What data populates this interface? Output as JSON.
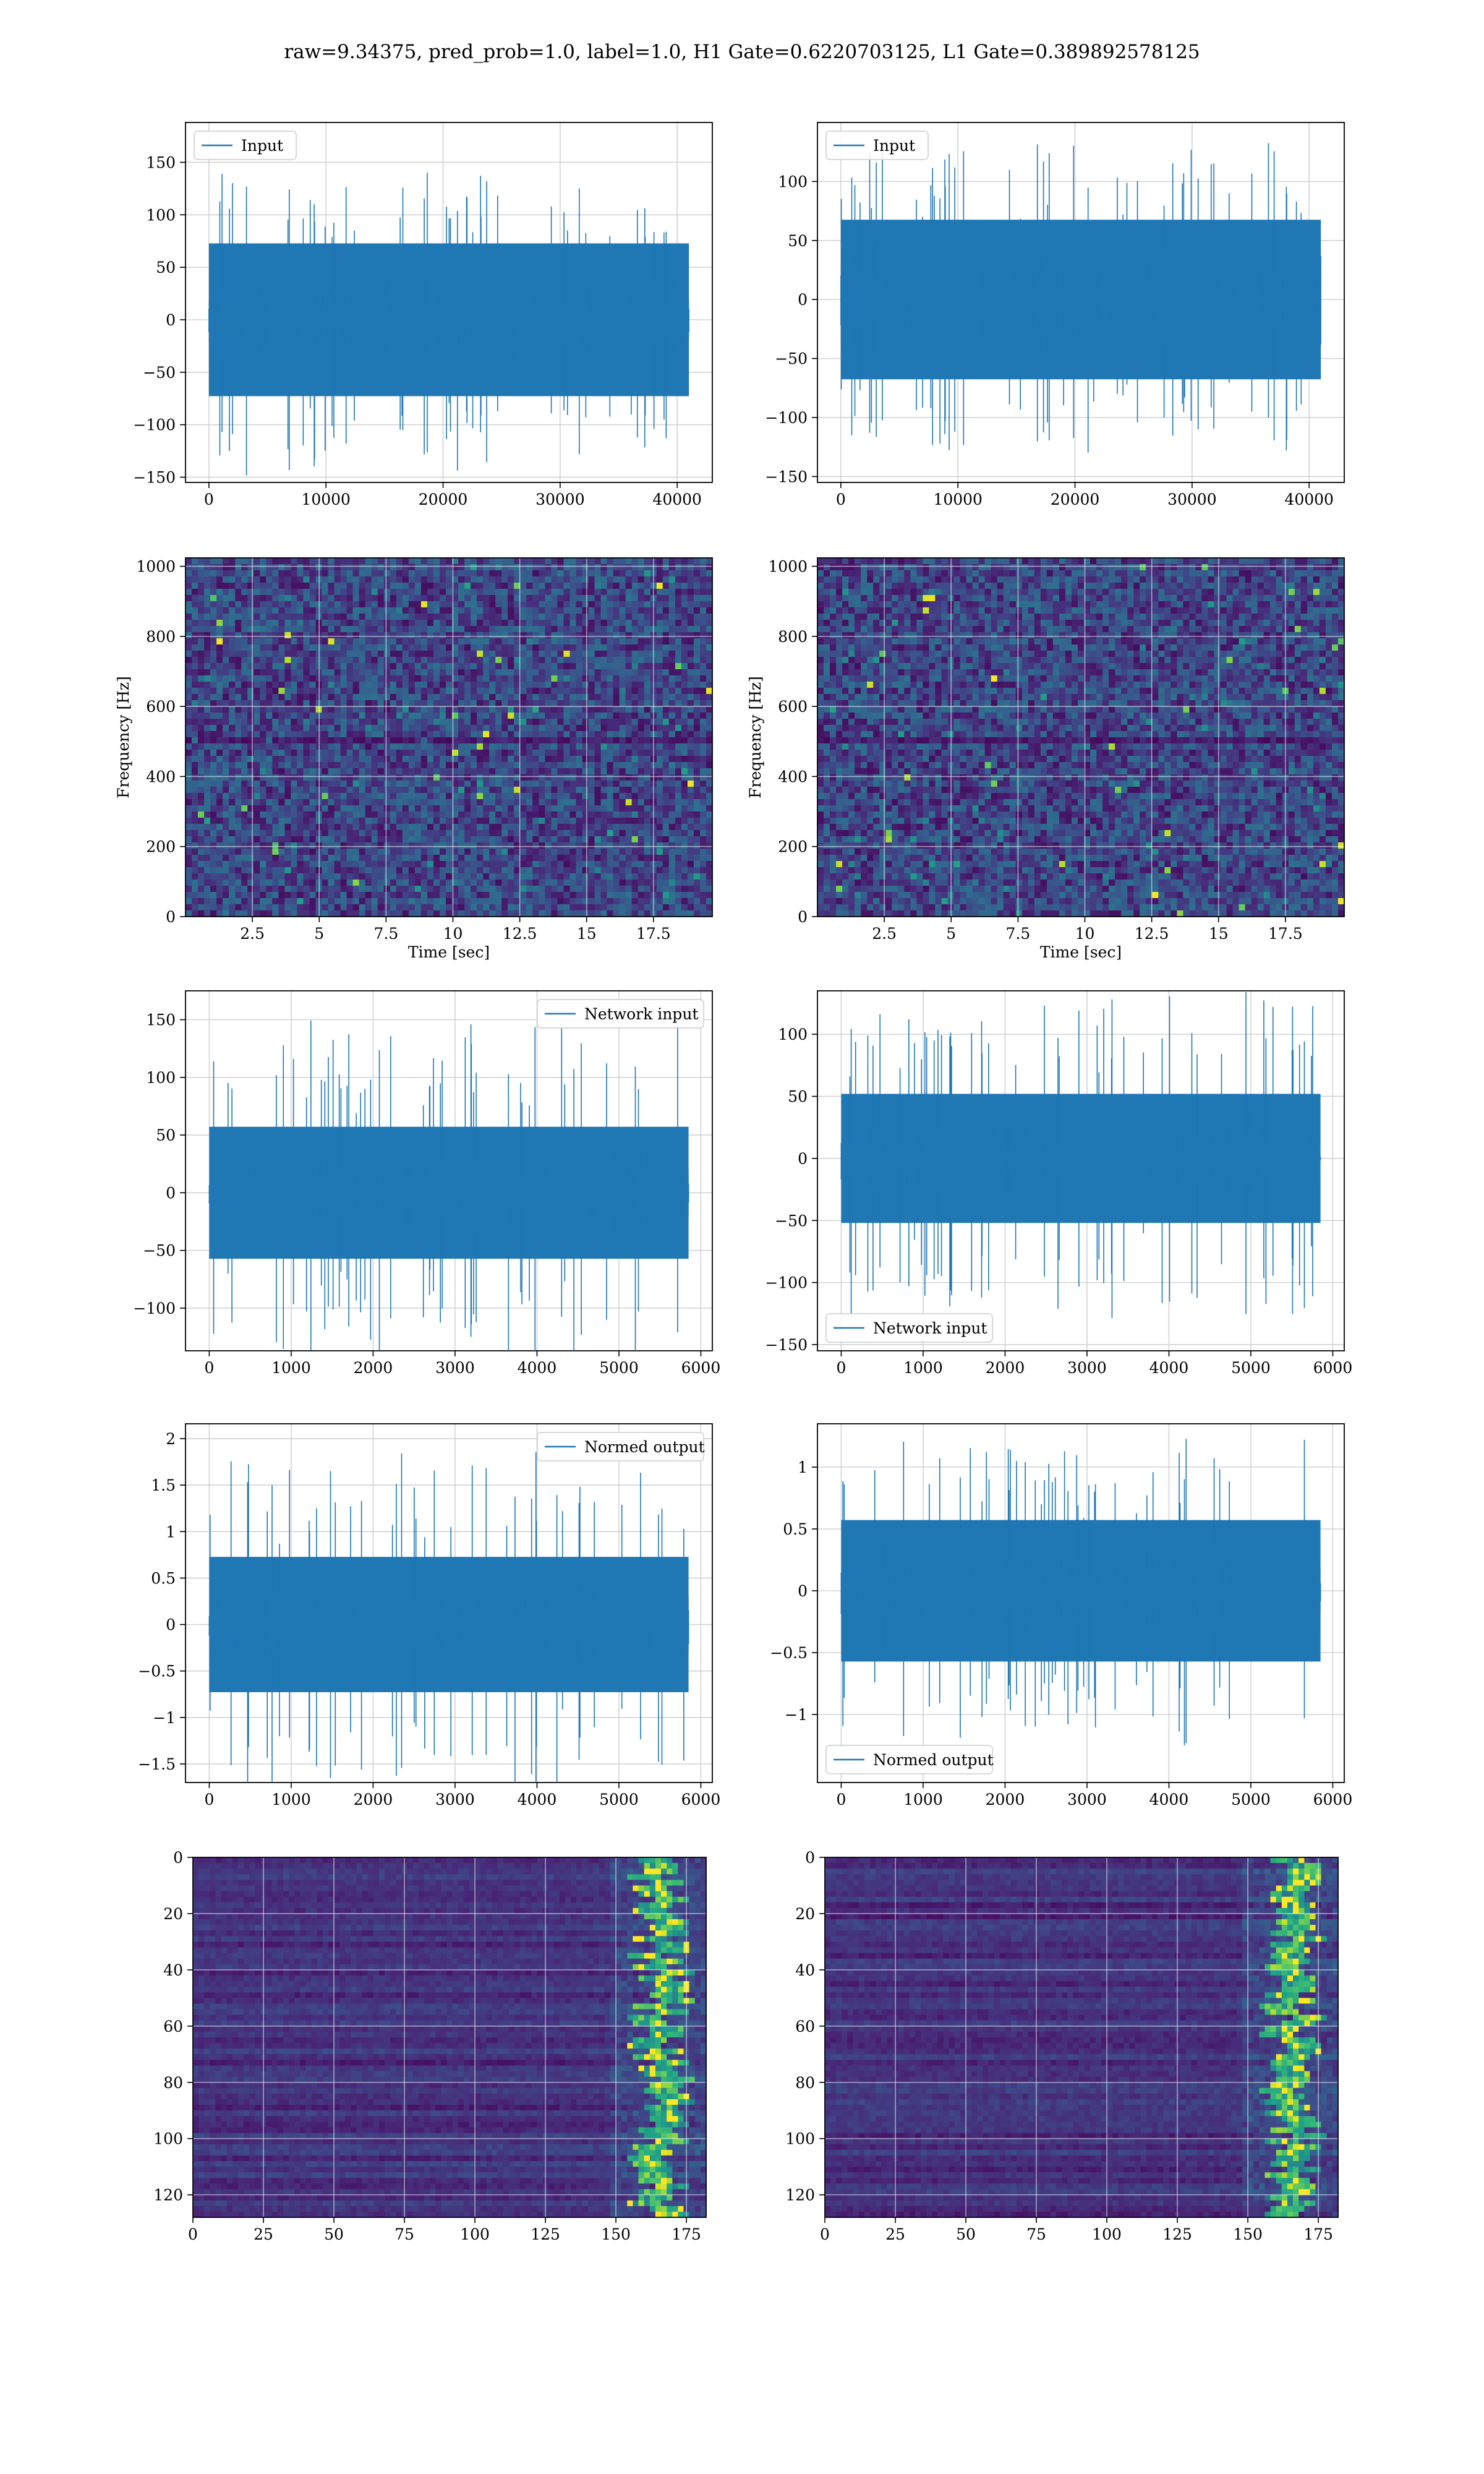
{
  "figure": {
    "title": "raw=9.34375, pred_prob=1.0, label=1.0, H1 Gate=0.6220703125, L1 Gate=0.389892578125"
  },
  "colors": {
    "series": "#1f77b4",
    "grid": "#d3d3d3",
    "viridis_low": "#440154",
    "viridis_mid": "#21918c",
    "viridis_high": "#fde725"
  },
  "chart_data": [
    {
      "id": "h1-input",
      "type": "line",
      "series": [
        {
          "name": "Input",
          "style": "dense noise, amplitude mostly ±90, spikes to ±150"
        }
      ],
      "x": [
        0,
        41000
      ],
      "xticks": [
        0,
        10000,
        20000,
        30000,
        40000
      ],
      "yticks": [
        -150,
        -100,
        -50,
        0,
        50,
        100,
        150
      ],
      "xlim": [
        -2000,
        43000
      ],
      "ylim": [
        -155,
        188
      ],
      "legend": "upper left",
      "grid": true
    },
    {
      "id": "l1-input",
      "type": "line",
      "series": [
        {
          "name": "Input",
          "style": "dense noise, amplitude mostly ±80, spikes to ±140"
        }
      ],
      "x": [
        0,
        41000
      ],
      "xticks": [
        0,
        10000,
        20000,
        30000,
        40000
      ],
      "yticks": [
        -150,
        -100,
        -50,
        0,
        50,
        100
      ],
      "xlim": [
        -2000,
        43000
      ],
      "ylim": [
        -155,
        150
      ],
      "legend": "upper left",
      "grid": true
    },
    {
      "id": "h1-spectrogram",
      "type": "heatmap",
      "xlabel": "Time [sec]",
      "ylabel": "Frequency [Hz]",
      "xticks": [
        2.5,
        5.0,
        7.5,
        10.0,
        12.5,
        15.0,
        17.5
      ],
      "yticks": [
        0,
        200,
        400,
        600,
        800,
        1000
      ],
      "xlim": [
        0,
        19.7
      ],
      "ylim": [
        0,
        1024
      ],
      "grid": true,
      "colormap": "viridis"
    },
    {
      "id": "l1-spectrogram",
      "type": "heatmap",
      "xlabel": "Time [sec]",
      "ylabel": "Frequency [Hz]",
      "xticks": [
        2.5,
        5.0,
        7.5,
        10.0,
        12.5,
        15.0,
        17.5
      ],
      "yticks": [
        0,
        200,
        400,
        600,
        800,
        1000
      ],
      "xlim": [
        0,
        19.7
      ],
      "ylim": [
        0,
        1024
      ],
      "grid": true,
      "colormap": "viridis"
    },
    {
      "id": "h1-network-input",
      "type": "line",
      "series": [
        {
          "name": "Network input",
          "style": "dense noise, amplitude mostly ±70, spikes to ±150"
        }
      ],
      "x": [
        0,
        5850
      ],
      "xticks": [
        0,
        1000,
        2000,
        3000,
        4000,
        5000,
        6000
      ],
      "yticks": [
        -100,
        -50,
        0,
        50,
        100,
        150
      ],
      "xlim": [
        -290,
        6140
      ],
      "ylim": [
        -137,
        175
      ],
      "legend": "upper right",
      "grid": true
    },
    {
      "id": "l1-network-input",
      "type": "line",
      "series": [
        {
          "name": "Network input",
          "style": "dense noise, amplitude mostly ±60, spikes to ±140"
        }
      ],
      "x": [
        0,
        5850
      ],
      "xticks": [
        0,
        1000,
        2000,
        3000,
        4000,
        5000,
        6000
      ],
      "yticks": [
        -150,
        -100,
        -50,
        0,
        50,
        100
      ],
      "xlim": [
        -290,
        6140
      ],
      "ylim": [
        -155,
        135
      ],
      "legend": "lower left",
      "grid": true
    },
    {
      "id": "h1-normed-output",
      "type": "line",
      "series": [
        {
          "name": "Normed output",
          "style": "dense noise, amplitude mostly ±0.9, spikes to ±2.0"
        }
      ],
      "x": [
        0,
        5850
      ],
      "xticks": [
        0,
        1000,
        2000,
        3000,
        4000,
        5000,
        6000
      ],
      "yticks": [
        -1.5,
        -1.0,
        -0.5,
        0.0,
        0.5,
        1.0,
        1.5,
        2.0
      ],
      "xlim": [
        -290,
        6140
      ],
      "ylim": [
        -1.7,
        2.16
      ],
      "legend": "upper right",
      "grid": true
    },
    {
      "id": "l1-normed-output",
      "type": "line",
      "series": [
        {
          "name": "Normed output",
          "style": "dense noise, amplitude mostly ±0.7, spikes to ±1.3"
        }
      ],
      "x": [
        0,
        5850
      ],
      "xticks": [
        0,
        1000,
        2000,
        3000,
        4000,
        5000,
        6000
      ],
      "yticks": [
        -1.0,
        -0.5,
        0.0,
        0.5,
        1.0
      ],
      "xlim": [
        -290,
        6140
      ],
      "ylim": [
        -1.55,
        1.35
      ],
      "legend": "lower left",
      "grid": true
    },
    {
      "id": "h1-feature-map",
      "type": "heatmap",
      "xticks": [
        0,
        25,
        50,
        75,
        100,
        125,
        150,
        175
      ],
      "yticks": [
        0,
        20,
        40,
        60,
        80,
        100,
        120
      ],
      "xlim": [
        0,
        182
      ],
      "ylim": [
        128,
        0
      ],
      "grid": true,
      "colormap": "viridis",
      "hotspot_x_range": [
        148,
        182
      ]
    },
    {
      "id": "l1-feature-map",
      "type": "heatmap",
      "xticks": [
        0,
        25,
        50,
        75,
        100,
        125,
        150,
        175
      ],
      "yticks": [
        0,
        20,
        40,
        60,
        80,
        100,
        120
      ],
      "xlim": [
        0,
        182
      ],
      "ylim": [
        128,
        0
      ],
      "grid": true,
      "colormap": "viridis",
      "hotspot_x_range": [
        148,
        182
      ]
    }
  ]
}
